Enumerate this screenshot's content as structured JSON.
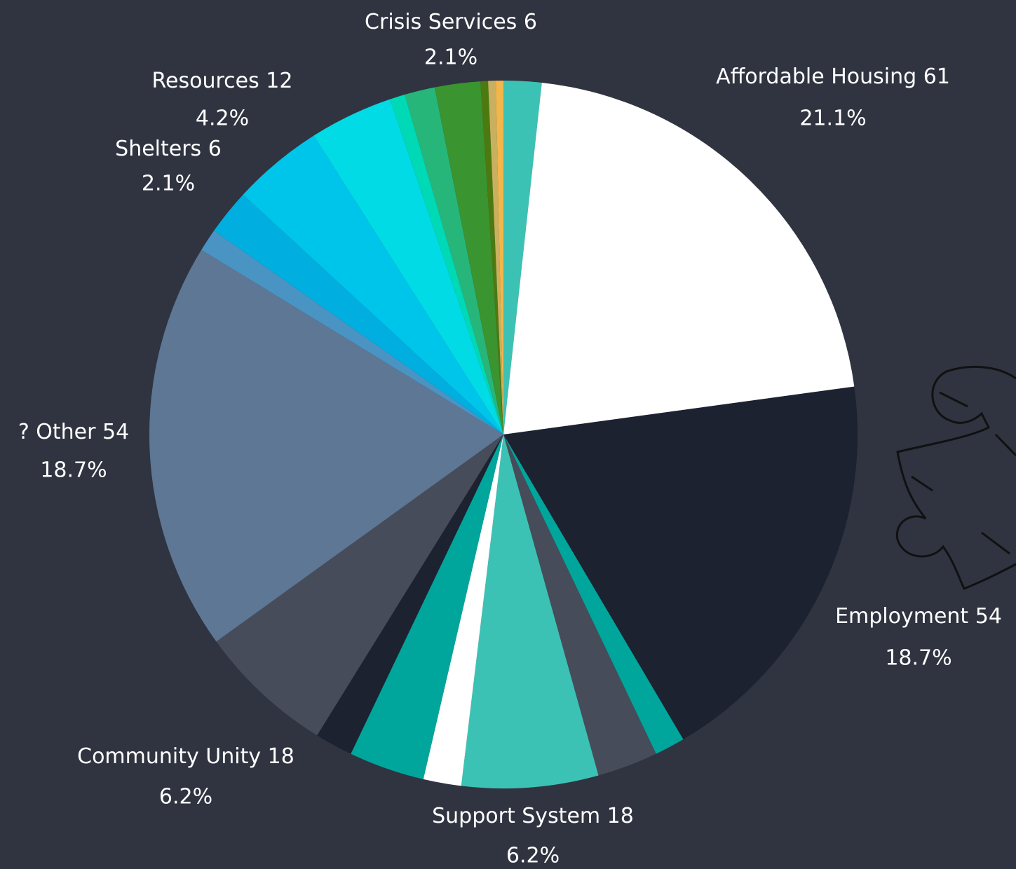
{
  "chart_data": {
    "type": "pie",
    "categories": [
      null,
      "Affordable Housing",
      "Employment",
      null,
      null,
      "Support System",
      null,
      null,
      null,
      "Community Unity",
      "? Other",
      null,
      "Shelters",
      "Resources",
      null,
      null,
      null,
      "Crisis Services",
      null,
      null,
      null
    ],
    "values": [
      5,
      61,
      54,
      4,
      8,
      18,
      5,
      10,
      5,
      18,
      54,
      3,
      6,
      12,
      11,
      2,
      4,
      6,
      1,
      1,
      1
    ],
    "value_labels": [
      null,
      "21.1%",
      "18.7%",
      null,
      null,
      "6.2%",
      null,
      null,
      null,
      "6.2%",
      "18.7%",
      null,
      "2.1%",
      "4.2%",
      null,
      null,
      null,
      "2.1%",
      null,
      null,
      null
    ],
    "colors": [
      "#3cc2b4",
      "#ffffff",
      "#1c2230",
      "#00a59b",
      "#464c59",
      "#3cc2b4",
      "#ffffff",
      "#00a59b",
      "#1c2230",
      "#464c59",
      "#5d7795",
      "#4a94c4",
      "#00aee0",
      "#00c5ea",
      "#00dbe6",
      "#00d9b5",
      "#27b67a",
      "#3a9430",
      "#4d7a10",
      "#c9b060",
      "#f3b64a"
    ]
  }
}
